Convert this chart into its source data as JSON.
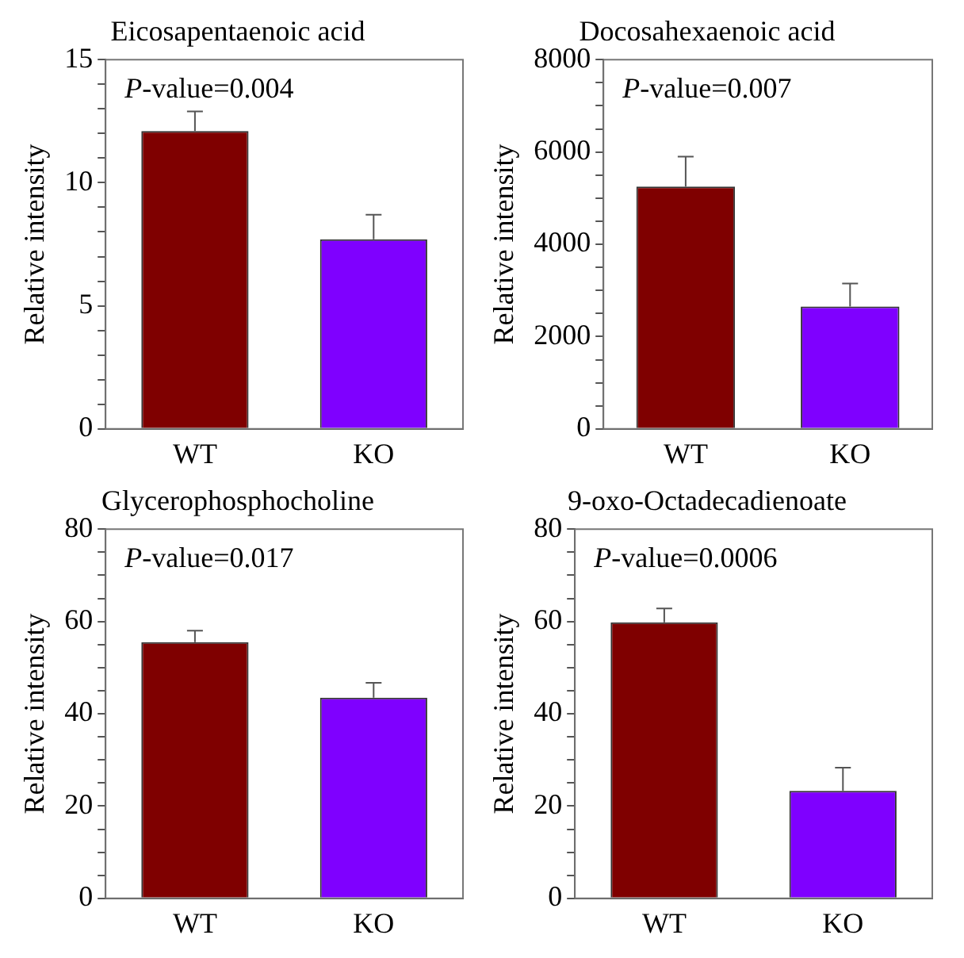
{
  "chart_data": [
    {
      "type": "bar",
      "title": "Eicosapentaenoic acid",
      "ylabel": "Relative intensity",
      "categories": [
        "WT",
        "KO"
      ],
      "values": [
        12.1,
        7.7
      ],
      "colors": [
        "#7f0000",
        "#7f00ff"
      ],
      "errors": [
        [
          12.1,
          12.9
        ],
        [
          7.7,
          8.7
        ]
      ],
      "ylim": [
        0,
        15
      ],
      "yticks": [
        0,
        {
          "value": 1,
          "label": null
        },
        {
          "value": 2,
          "label": null
        },
        {
          "value": 3,
          "label": null
        },
        {
          "value": 4,
          "label": null
        },
        5,
        {
          "value": 6,
          "label": null
        },
        {
          "value": 7,
          "label": null
        },
        {
          "value": 8,
          "label": null
        },
        {
          "value": 9,
          "label": null
        },
        10,
        {
          "value": 11,
          "label": null
        },
        {
          "value": 12,
          "label": null
        },
        {
          "value": 13,
          "label": null
        },
        {
          "value": 14,
          "label": null
        },
        15
      ],
      "annotations": [
        "P-value=0.004"
      ]
    },
    {
      "type": "bar",
      "title": "Docosahexaenoic acid",
      "ylabel": "Relative intensity",
      "categories": [
        "WT",
        "KO"
      ],
      "values": [
        5250,
        2650
      ],
      "colors": [
        "#7f0000",
        "#7f00ff"
      ],
      "errors": [
        [
          5250,
          5900
        ],
        [
          2650,
          3150
        ]
      ],
      "ylim": [
        0,
        8000
      ],
      "yticks": [
        0,
        {
          "value": 500,
          "label": null
        },
        {
          "value": 1000,
          "label": null
        },
        {
          "value": 1500,
          "label": null
        },
        2000,
        {
          "value": 2500,
          "label": null
        },
        {
          "value": 3000,
          "label": null
        },
        {
          "value": 3500,
          "label": null
        },
        4000,
        {
          "value": 4500,
          "label": null
        },
        {
          "value": 5000,
          "label": null
        },
        {
          "value": 5500,
          "label": null
        },
        6000,
        {
          "value": 6500,
          "label": null
        },
        {
          "value": 7000,
          "label": null
        },
        {
          "value": 7500,
          "label": null
        },
        8000
      ],
      "annotations": [
        "P-value=0.007"
      ]
    },
    {
      "type": "bar",
      "title": "Glycerophosphocholine",
      "ylabel": "Relative intensity",
      "categories": [
        "WT",
        "KO"
      ],
      "values": [
        55.5,
        43.5
      ],
      "colors": [
        "#7f0000",
        "#7f00ff"
      ],
      "errors": [
        [
          55.5,
          58
        ],
        [
          43.5,
          46.7
        ]
      ],
      "ylim": [
        0,
        80
      ],
      "yticks": [
        0,
        {
          "value": 5,
          "label": null
        },
        {
          "value": 10,
          "label": null
        },
        {
          "value": 15,
          "label": null
        },
        20,
        {
          "value": 25,
          "label": null
        },
        {
          "value": 30,
          "label": null
        },
        {
          "value": 35,
          "label": null
        },
        40,
        {
          "value": 45,
          "label": null
        },
        {
          "value": 50,
          "label": null
        },
        {
          "value": 55,
          "label": null
        },
        60,
        {
          "value": 65,
          "label": null
        },
        {
          "value": 70,
          "label": null
        },
        {
          "value": 75,
          "label": null
        },
        80
      ],
      "annotations": [
        "P-value=0.017"
      ]
    },
    {
      "type": "bar",
      "title": "9-oxo-Octadecadienoate",
      "ylabel": "Relative intensity",
      "categories": [
        "WT",
        "KO"
      ],
      "values": [
        59.8,
        23.3
      ],
      "colors": [
        "#7f0000",
        "#7f00ff"
      ],
      "errors": [
        [
          59.8,
          62.8
        ],
        [
          23.3,
          28.3
        ]
      ],
      "ylim": [
        0,
        80
      ],
      "yticks": [
        0,
        {
          "value": 5,
          "label": null
        },
        {
          "value": 10,
          "label": null
        },
        {
          "value": 15,
          "label": null
        },
        20,
        {
          "value": 25,
          "label": null
        },
        {
          "value": 30,
          "label": null
        },
        {
          "value": 35,
          "label": null
        },
        40,
        {
          "value": 45,
          "label": null
        },
        {
          "value": 50,
          "label": null
        },
        {
          "value": 55,
          "label": null
        },
        60,
        {
          "value": 65,
          "label": null
        },
        {
          "value": 70,
          "label": null
        },
        {
          "value": 75,
          "label": null
        },
        80
      ],
      "annotations": [
        "P-value=0.0006"
      ]
    }
  ]
}
